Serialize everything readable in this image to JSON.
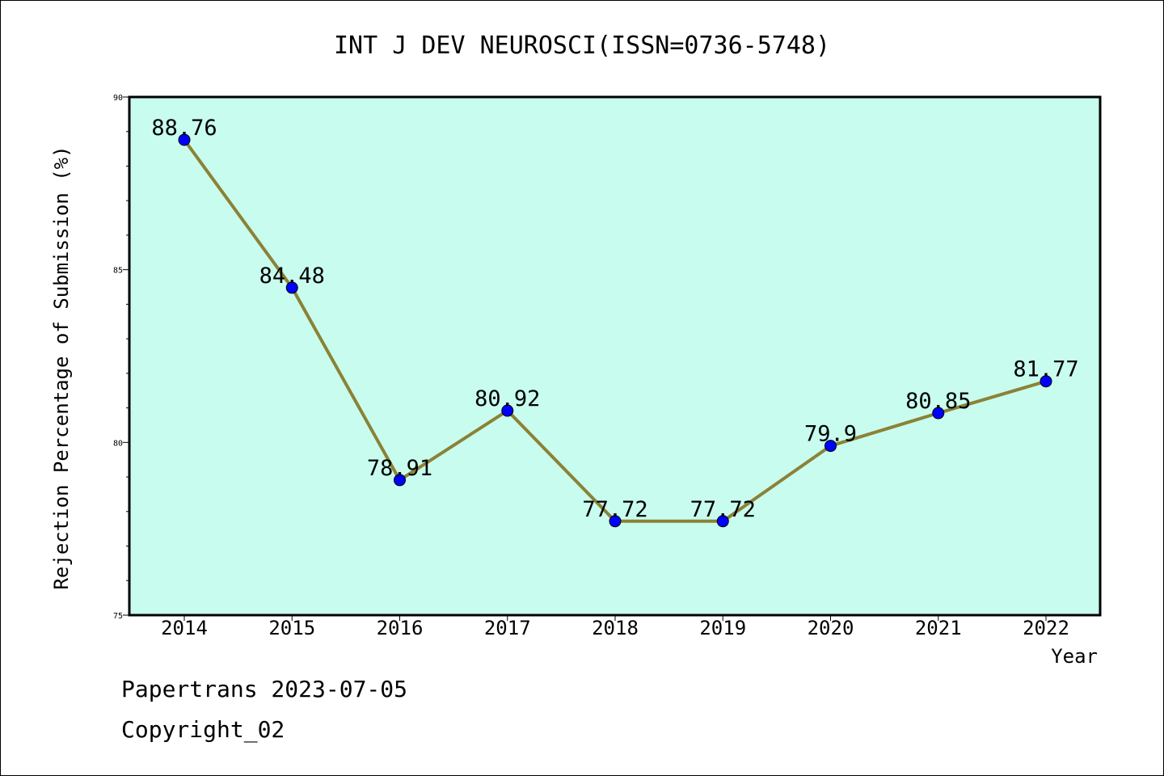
{
  "chart_data": {
    "type": "line",
    "title": "INT J DEV NEUROSCI(ISSN=0736-5748)",
    "xlabel": "Year",
    "ylabel": "Rejection Percentage of Submission (%)",
    "categories": [
      "2014",
      "2015",
      "2016",
      "2017",
      "2018",
      "2019",
      "2020",
      "2021",
      "2022"
    ],
    "series": [
      {
        "values": [
          88.76,
          84.48,
          78.91,
          80.92,
          77.72,
          77.72,
          79.9,
          80.85,
          81.77
        ],
        "labels": [
          "88.76",
          "84.48",
          "78.91",
          "80.92",
          "77.72",
          "77.72",
          "79.9",
          "80.85",
          "81.77"
        ]
      }
    ],
    "ylim": [
      75,
      90
    ],
    "yticks": [
      75,
      80,
      85,
      90
    ],
    "ytick_labels": [
      "75",
      "80",
      "85",
      "90"
    ],
    "grid": false,
    "colors": {
      "plot_background": "#c8fcee",
      "line": "#8b8236",
      "marker": "#0000ff"
    }
  },
  "footer": {
    "line1": "Papertrans 2023-07-05",
    "line2": "Copyright_02"
  }
}
